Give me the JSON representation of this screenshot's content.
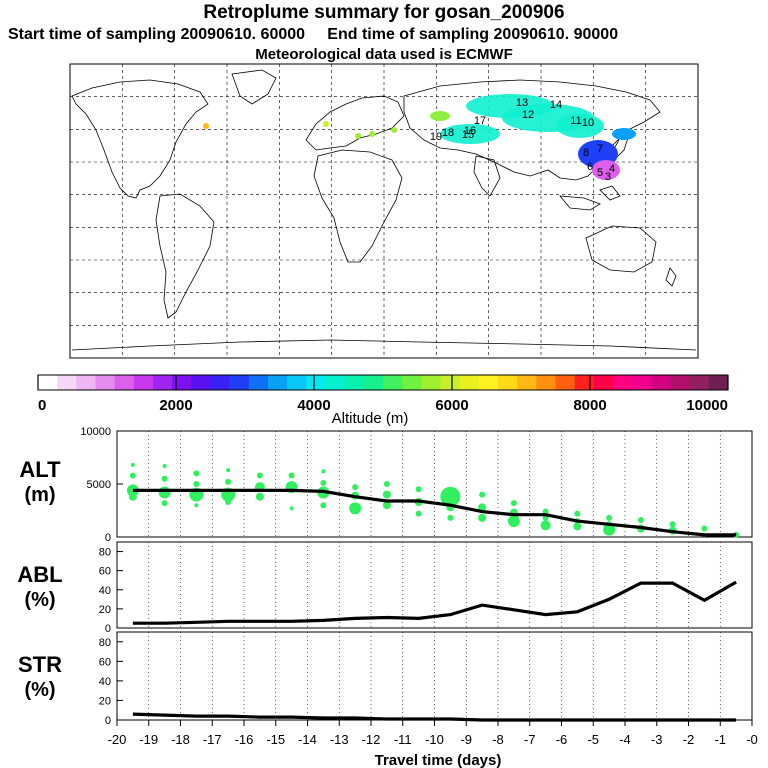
{
  "header": {
    "title": "Retroplume summary for gosan_200906",
    "start_label": "Start time of sampling 20090610. 60000",
    "end_label": "End time of sampling 20090610. 90000",
    "met_label": "Meteorological data used is ECMWF"
  },
  "colorbar": {
    "ticks": [
      "0",
      "2000",
      "4000",
      "6000",
      "8000",
      "10000"
    ],
    "label": "Altitude (m)",
    "colors": [
      "#ffffff",
      "#f6d8f6",
      "#eeb6f4",
      "#e68cf0",
      "#dc60ec",
      "#c838ec",
      "#a024f0",
      "#7c10f0",
      "#5a10f0",
      "#3a20f4",
      "#2040f8",
      "#1070f8",
      "#0aa0f8",
      "#08c8f8",
      "#06e8f0",
      "#06f0d0",
      "#08f0b0",
      "#18f090",
      "#40f060",
      "#70f040",
      "#a0f030",
      "#c8f028",
      "#e8f020",
      "#fff020",
      "#ffd818",
      "#ffb814",
      "#ff9010",
      "#ff6010",
      "#ff2020",
      "#ff0048",
      "#ff0080",
      "#f0008c",
      "#d00080",
      "#b0106c",
      "#902060",
      "#702050"
    ]
  },
  "map": {
    "plume_labels": [
      "14",
      "13",
      "11",
      "10",
      "12",
      "15",
      "16",
      "17",
      "18",
      "19",
      "8",
      "7",
      "6",
      "5",
      "4",
      "3"
    ]
  },
  "chart_data": [
    {
      "type": "line",
      "title": "ALT (m)",
      "ylabel_lines": [
        "ALT",
        "(m)"
      ],
      "ylim": [
        0,
        10000
      ],
      "yticks": [
        "10000",
        "5000",
        "0"
      ],
      "x": [
        -19.5,
        -18.5,
        -17.5,
        -16.5,
        -15.5,
        -14.5,
        -13.5,
        -12.5,
        -11.5,
        -10.5,
        -9.5,
        -8.5,
        -7.5,
        -6.5,
        -5.5,
        -4.5,
        -3.5,
        -2.5,
        -1.5,
        -0.5
      ],
      "y": [
        4400,
        4400,
        4400,
        4400,
        4400,
        4400,
        4300,
        3800,
        3400,
        3400,
        3000,
        2400,
        2100,
        2100,
        1500,
        1200,
        900,
        500,
        200,
        200
      ],
      "scatter": [
        {
          "x": -19.5,
          "y": 6800,
          "r": 2
        },
        {
          "x": -19.5,
          "y": 5800,
          "r": 3
        },
        {
          "x": -19.5,
          "y": 4400,
          "r": 6
        },
        {
          "x": -19.5,
          "y": 3800,
          "r": 4
        },
        {
          "x": -18.5,
          "y": 6700,
          "r": 2
        },
        {
          "x": -18.5,
          "y": 5500,
          "r": 3
        },
        {
          "x": -18.5,
          "y": 4200,
          "r": 6
        },
        {
          "x": -18.5,
          "y": 3200,
          "r": 3
        },
        {
          "x": -17.5,
          "y": 6000,
          "r": 3
        },
        {
          "x": -17.5,
          "y": 5000,
          "r": 3
        },
        {
          "x": -17.5,
          "y": 4000,
          "r": 7
        },
        {
          "x": -17.5,
          "y": 3000,
          "r": 2
        },
        {
          "x": -16.5,
          "y": 6300,
          "r": 2
        },
        {
          "x": -16.5,
          "y": 5200,
          "r": 3
        },
        {
          "x": -16.5,
          "y": 4000,
          "r": 7
        },
        {
          "x": -16.5,
          "y": 3300,
          "r": 3
        },
        {
          "x": -15.5,
          "y": 5800,
          "r": 3
        },
        {
          "x": -15.5,
          "y": 4700,
          "r": 5
        },
        {
          "x": -15.5,
          "y": 3800,
          "r": 4
        },
        {
          "x": -14.5,
          "y": 5800,
          "r": 3
        },
        {
          "x": -14.5,
          "y": 4700,
          "r": 6
        },
        {
          "x": -14.5,
          "y": 2700,
          "r": 2
        },
        {
          "x": -13.5,
          "y": 6200,
          "r": 2
        },
        {
          "x": -13.5,
          "y": 5100,
          "r": 3
        },
        {
          "x": -13.5,
          "y": 4200,
          "r": 6
        },
        {
          "x": -13.5,
          "y": 3000,
          "r": 3
        },
        {
          "x": -12.5,
          "y": 4700,
          "r": 3
        },
        {
          "x": -12.5,
          "y": 3900,
          "r": 4
        },
        {
          "x": -12.5,
          "y": 2700,
          "r": 6
        },
        {
          "x": -11.5,
          "y": 5000,
          "r": 3
        },
        {
          "x": -11.5,
          "y": 4000,
          "r": 4
        },
        {
          "x": -11.5,
          "y": 3000,
          "r": 4
        },
        {
          "x": -10.5,
          "y": 4500,
          "r": 3
        },
        {
          "x": -10.5,
          "y": 3300,
          "r": 4
        },
        {
          "x": -10.5,
          "y": 2200,
          "r": 3
        },
        {
          "x": -9.5,
          "y": 3800,
          "r": 10
        },
        {
          "x": -9.5,
          "y": 2800,
          "r": 4
        },
        {
          "x": -9.5,
          "y": 1800,
          "r": 3
        },
        {
          "x": -8.5,
          "y": 4000,
          "r": 3
        },
        {
          "x": -8.5,
          "y": 2800,
          "r": 4
        },
        {
          "x": -8.5,
          "y": 1800,
          "r": 4
        },
        {
          "x": -7.5,
          "y": 3200,
          "r": 3
        },
        {
          "x": -7.5,
          "y": 2300,
          "r": 4
        },
        {
          "x": -7.5,
          "y": 1500,
          "r": 6
        },
        {
          "x": -6.5,
          "y": 2400,
          "r": 3
        },
        {
          "x": -6.5,
          "y": 1800,
          "r": 3
        },
        {
          "x": -6.5,
          "y": 1100,
          "r": 5
        },
        {
          "x": -5.5,
          "y": 2200,
          "r": 3
        },
        {
          "x": -5.5,
          "y": 1500,
          "r": 3
        },
        {
          "x": -5.5,
          "y": 1000,
          "r": 4
        },
        {
          "x": -4.5,
          "y": 1800,
          "r": 3
        },
        {
          "x": -4.5,
          "y": 1200,
          "r": 3
        },
        {
          "x": -4.5,
          "y": 700,
          "r": 6
        },
        {
          "x": -3.5,
          "y": 1600,
          "r": 3
        },
        {
          "x": -3.5,
          "y": 800,
          "r": 4
        },
        {
          "x": -2.5,
          "y": 1200,
          "r": 3
        },
        {
          "x": -2.5,
          "y": 600,
          "r": 4
        },
        {
          "x": -1.5,
          "y": 800,
          "r": 3
        },
        {
          "x": -1.5,
          "y": 200,
          "r": 2
        },
        {
          "x": -0.5,
          "y": 200,
          "r": 3
        }
      ]
    },
    {
      "type": "line",
      "title": "ABL (%)",
      "ylabel_lines": [
        "ABL",
        "(%)"
      ],
      "ylim": [
        0,
        90
      ],
      "yticks": [
        "80",
        "60",
        "40",
        "20",
        "0"
      ],
      "x": [
        -19.5,
        -18.5,
        -17.5,
        -16.5,
        -15.5,
        -14.5,
        -13.5,
        -12.5,
        -11.5,
        -10.5,
        -9.5,
        -8.5,
        -7.5,
        -6.5,
        -5.5,
        -4.5,
        -3.5,
        -2.5,
        -1.5,
        -0.5
      ],
      "y": [
        5,
        5,
        6,
        7,
        7,
        7,
        8,
        10,
        11,
        10,
        14,
        24,
        19,
        14,
        17,
        30,
        47,
        47,
        29,
        48
      ]
    },
    {
      "type": "line",
      "title": "STR (%)",
      "ylabel_lines": [
        "STR",
        "(%)"
      ],
      "ylim": [
        0,
        90
      ],
      "yticks": [
        "80",
        "60",
        "40",
        "20",
        "0"
      ],
      "x": [
        -19.5,
        -18.5,
        -17.5,
        -16.5,
        -15.5,
        -14.5,
        -13.5,
        -12.5,
        -11.5,
        -10.5,
        -9.5,
        -8.5,
        -7.5,
        -6.5,
        -5.5,
        -4.5,
        -3.5,
        -2.5,
        -1.5,
        -0.5
      ],
      "y": [
        6,
        5,
        4,
        4,
        3,
        3,
        2,
        2,
        1,
        1,
        1,
        0,
        0,
        0,
        0,
        0,
        0,
        0,
        0,
        0
      ]
    }
  ],
  "x_axis": {
    "ticks": [
      "-20",
      "-19",
      "-18",
      "-17",
      "-16",
      "-15",
      "-14",
      "-13",
      "-12",
      "-11",
      "-10",
      "-9",
      "-8",
      "-7",
      "-6",
      "-5",
      "-4",
      "-3",
      "-2",
      "-1",
      "-0"
    ],
    "label": "Travel time (days)"
  }
}
